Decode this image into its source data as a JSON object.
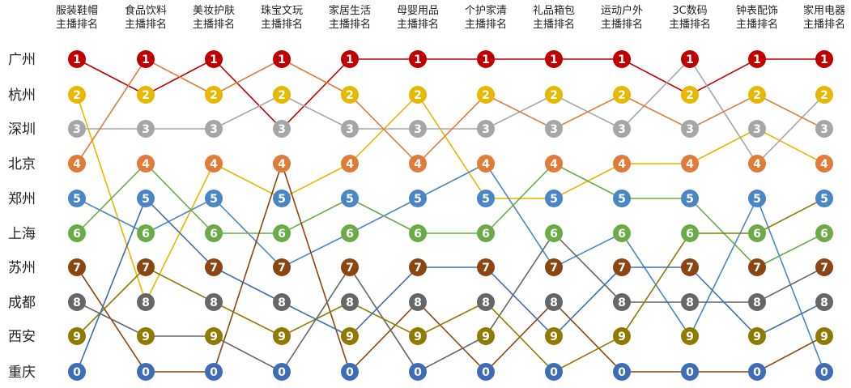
{
  "chart_data": {
    "type": "bump",
    "categories": [
      "服装鞋帽\n主播排名",
      "食品饮料\n主播排名",
      "美妆护肤\n主播排名",
      "珠宝文玩\n主播排名",
      "家居生活\n主播排名",
      "母婴用品\n主播排名",
      "个护家清\n主播排名",
      "礼品箱包\n主播排名",
      "运动户外\n主播排名",
      "3C数码\n主播排名",
      "钟表配饰\n主播排名",
      "家用电器\n主播排名"
    ],
    "row_labels": [
      "广州",
      "杭州",
      "深圳",
      "北京",
      "郑州",
      "上海",
      "苏州",
      "成都",
      "西安",
      "重庆"
    ],
    "badge_order": [
      "1",
      "2",
      "3",
      "4",
      "5",
      "6",
      "7",
      "8",
      "9",
      "0"
    ],
    "colors": {
      "1": "#c00000",
      "2": "#e6b800",
      "3": "#a6a6a6",
      "4": "#e07b39",
      "5": "#4a86c5",
      "6": "#6aab46",
      "7": "#8b4513",
      "8": "#666666",
      "9": "#8f7a00",
      "0": "#3e6db5"
    },
    "grid": false,
    "series": [
      {
        "name": "广州",
        "color": "#c00000",
        "ranks": [
          1,
          2,
          1,
          3,
          1,
          1,
          1,
          1,
          1,
          2,
          1,
          1
        ]
      },
      {
        "name": "杭州",
        "color": "#e6b800",
        "ranks": [
          2,
          8,
          4,
          5,
          4,
          2,
          5,
          5,
          4,
          4,
          3,
          4
        ]
      },
      {
        "name": "深圳",
        "color": "#a6a6a6",
        "ranks": [
          3,
          3,
          3,
          2,
          3,
          3,
          3,
          2,
          3,
          1,
          4,
          2
        ]
      },
      {
        "name": "北京",
        "color": "#e07b39",
        "ranks": [
          4,
          1,
          2,
          1,
          2,
          4,
          2,
          3,
          2,
          3,
          2,
          3
        ]
      },
      {
        "name": "郑州",
        "color": "#4a86c5",
        "ranks": [
          5,
          6,
          5,
          7,
          6,
          5,
          4,
          7,
          6,
          9,
          5,
          0
        ]
      },
      {
        "name": "上海",
        "color": "#6aab46",
        "ranks": [
          6,
          4,
          6,
          6,
          5,
          6,
          6,
          4,
          5,
          5,
          7,
          6
        ]
      },
      {
        "name": "苏州",
        "color": "#8b4513",
        "ranks": [
          7,
          0,
          0,
          4,
          0,
          8,
          0,
          8,
          0,
          0,
          0,
          9
        ]
      },
      {
        "name": "成都",
        "color": "#666666",
        "ranks": [
          8,
          9,
          9,
          0,
          7,
          0,
          9,
          6,
          8,
          8,
          8,
          7
        ]
      },
      {
        "name": "西安",
        "color": "#8f7a00",
        "ranks": [
          9,
          7,
          8,
          9,
          8,
          9,
          8,
          0,
          9,
          6,
          6,
          5
        ]
      },
      {
        "name": "重庆",
        "color": "#3e6db5",
        "ranks": [
          0,
          5,
          7,
          8,
          9,
          7,
          7,
          9,
          7,
          7,
          9,
          8
        ]
      }
    ]
  }
}
